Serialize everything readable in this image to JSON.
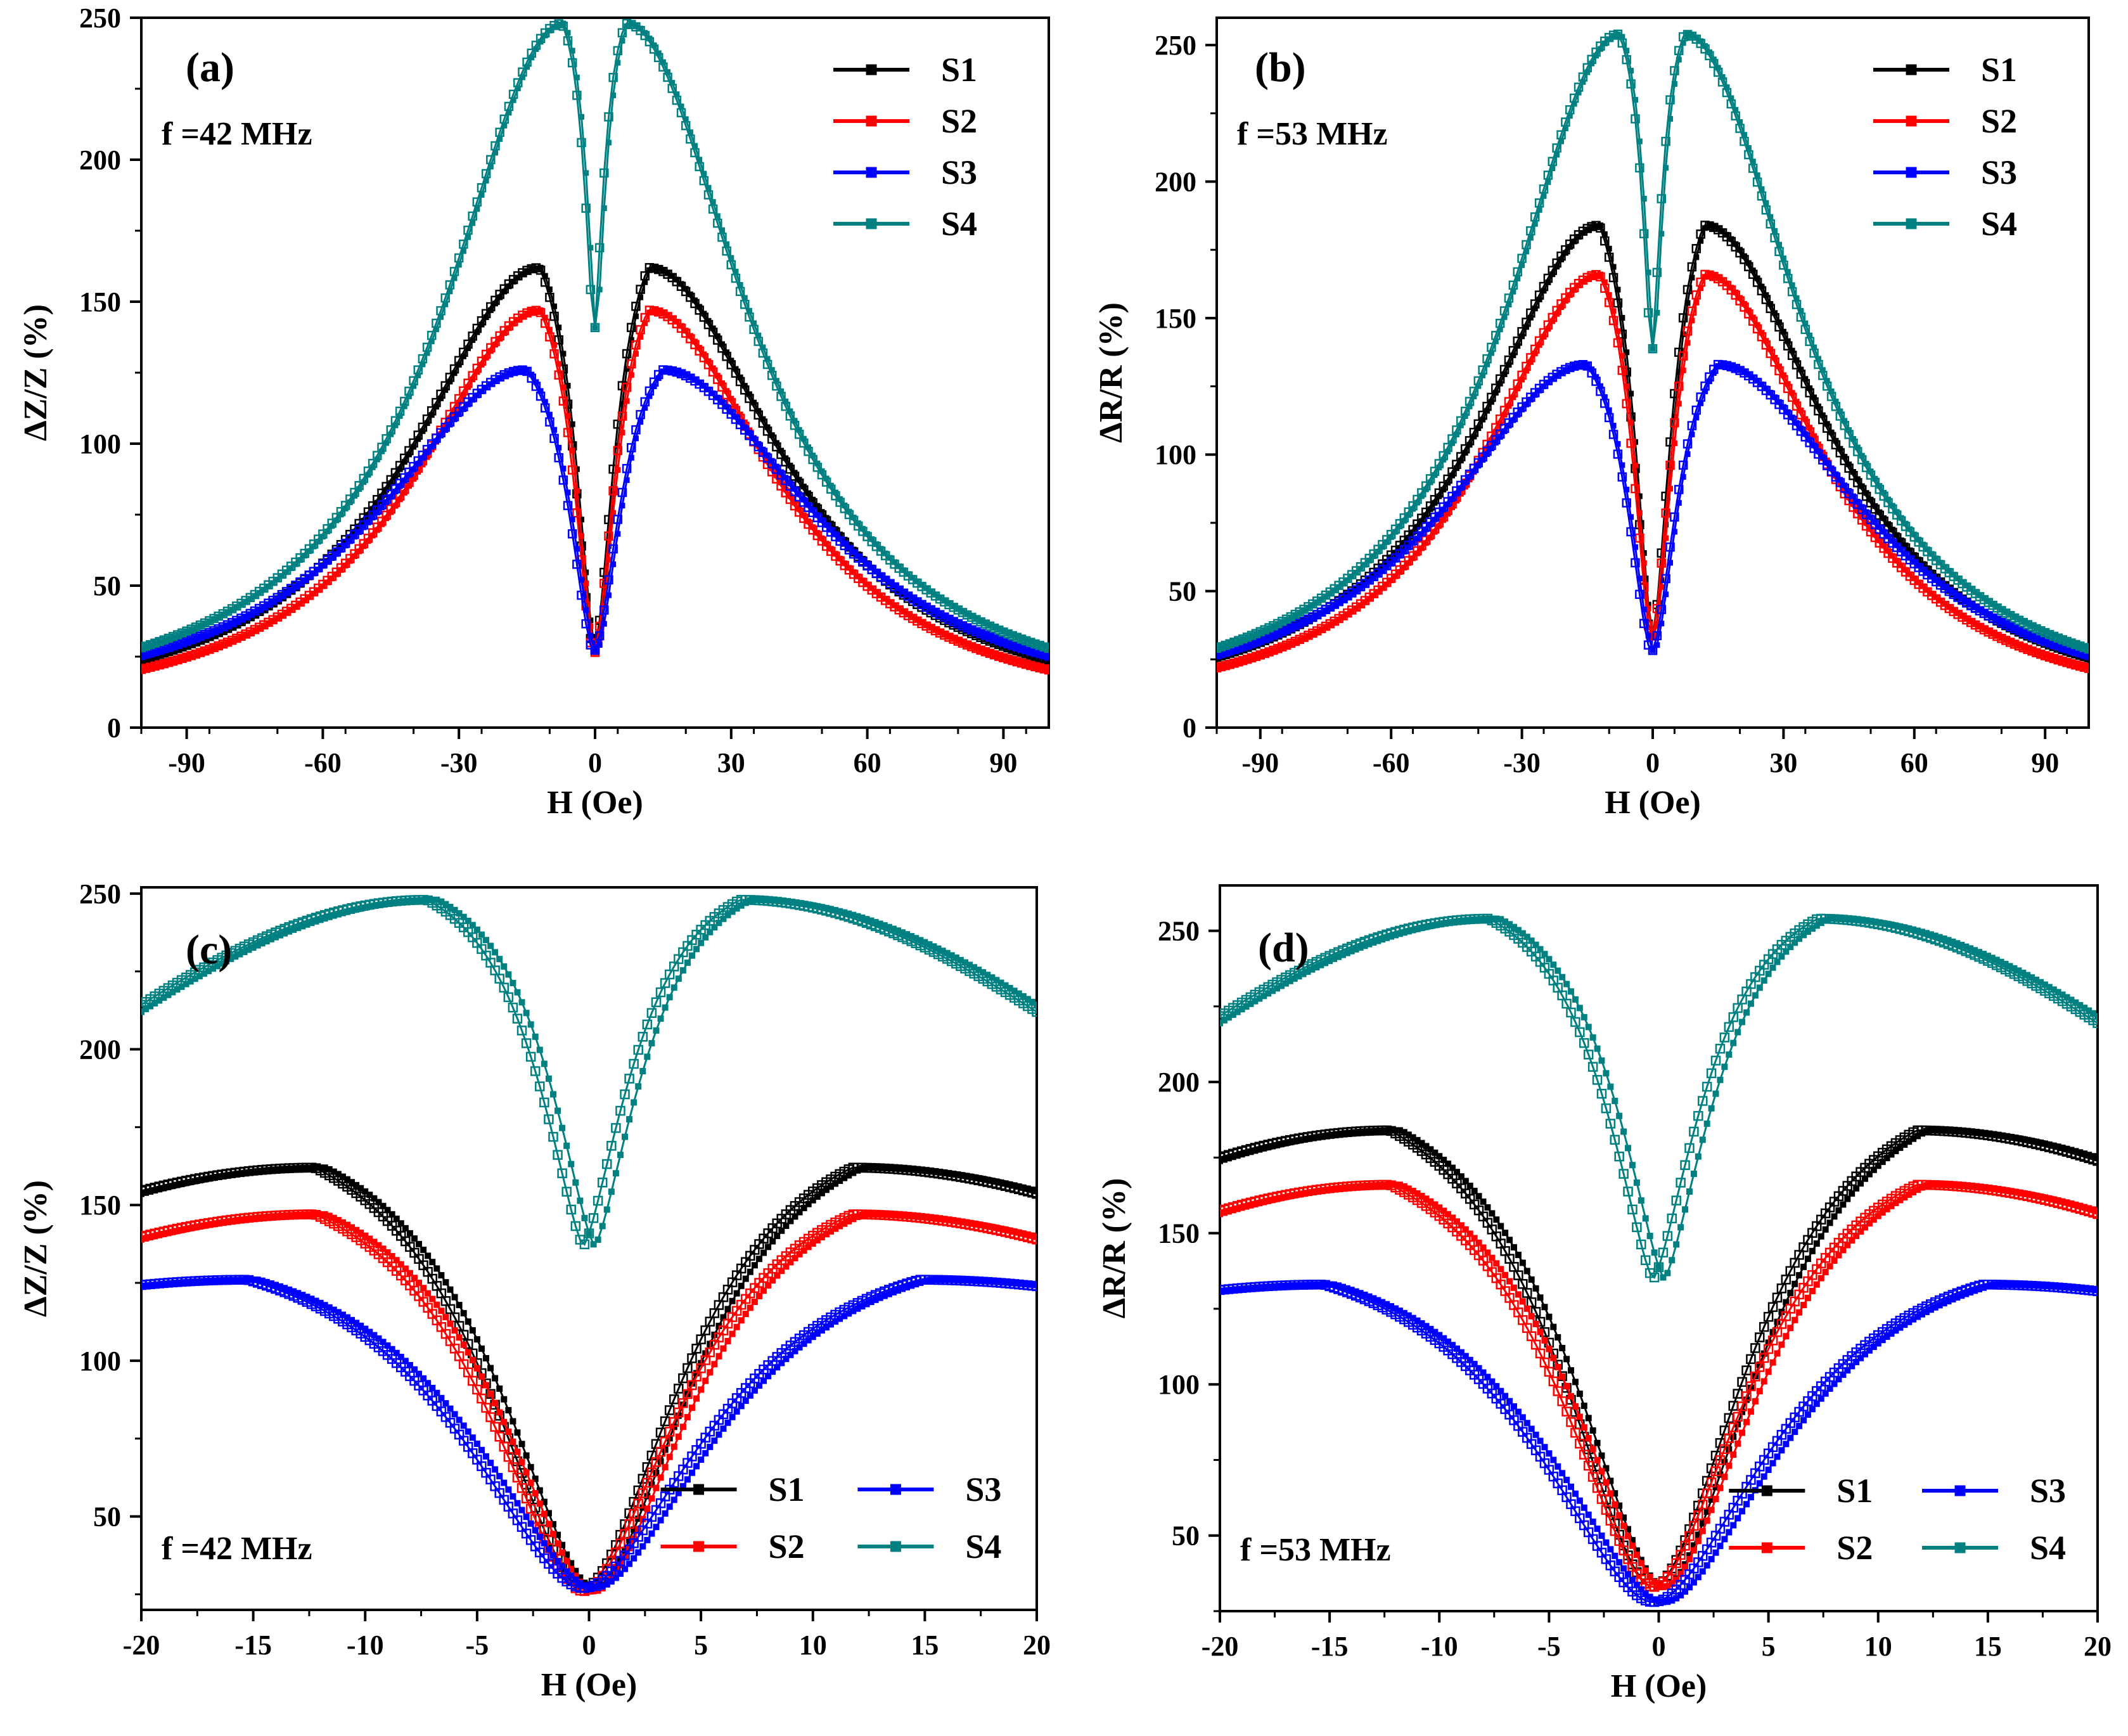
{
  "chart_data": [
    {
      "id": "a",
      "type": "scatter",
      "panel_label": "(a)",
      "annotation": "f =42 MHz",
      "xlabel": "H (Oe)",
      "ylabel": "ΔZ/Z (%)",
      "xlim": [
        -100,
        100
      ],
      "ylim": [
        0,
        250
      ],
      "xticks": [
        "-90",
        "-60",
        "-30",
        "0",
        "30",
        "60",
        "90"
      ],
      "xtick_values": [
        -90,
        -60,
        -30,
        0,
        30,
        60,
        90
      ],
      "yticks": [
        "0",
        "50",
        "100",
        "150",
        "200",
        "250"
      ],
      "ytick_values": [
        0,
        50,
        100,
        150,
        200,
        250
      ],
      "legend": {
        "placement": "top-right",
        "columns": 1,
        "entries": [
          "S1",
          "S2",
          "S3",
          "S4"
        ]
      },
      "series": [
        {
          "name": "S1",
          "color": "#000000",
          "peak": 162,
          "peak_h": 12,
          "min": 27,
          "tail": 2,
          "width": 35,
          "depth": 2
        },
        {
          "name": "S2",
          "color": "#ff0000",
          "peak": 147,
          "peak_h": 12,
          "min": 26,
          "tail": 1.5,
          "width": 34,
          "depth": 2
        },
        {
          "name": "S3",
          "color": "#0000ff",
          "peak": 126,
          "peak_h": 15,
          "min": 27,
          "tail": 3,
          "width": 40,
          "depth": 2
        },
        {
          "name": "S4",
          "color": "#008080",
          "peak": 248,
          "peak_h": 7,
          "min": 137,
          "tail": 2,
          "width": 32,
          "depth": 1.5
        }
      ]
    },
    {
      "id": "b",
      "type": "scatter",
      "panel_label": "(b)",
      "annotation": "f =53 MHz",
      "xlabel": "H (Oe)",
      "ylabel": "ΔR/R (%)",
      "xlim": [
        -100,
        100
      ],
      "ylim": [
        0,
        260
      ],
      "xticks": [
        "-90",
        "-60",
        "-30",
        "0",
        "30",
        "60",
        "90"
      ],
      "xtick_values": [
        -90,
        -60,
        -30,
        0,
        30,
        60,
        90
      ],
      "yticks": [
        "0",
        "50",
        "100",
        "150",
        "200",
        "250"
      ],
      "ytick_values": [
        0,
        50,
        100,
        150,
        200,
        250
      ],
      "legend": {
        "placement": "top-right",
        "columns": 1,
        "entries": [
          "S1",
          "S2",
          "S3",
          "S4"
        ]
      },
      "series": [
        {
          "name": "S1",
          "color": "#000000",
          "peak": 184,
          "peak_h": 12,
          "min": 33,
          "tail": 2,
          "width": 34,
          "depth": 2
        },
        {
          "name": "S2",
          "color": "#ff0000",
          "peak": 166,
          "peak_h": 12,
          "min": 33,
          "tail": 1.5,
          "width": 33,
          "depth": 2
        },
        {
          "name": "S3",
          "color": "#0000ff",
          "peak": 133,
          "peak_h": 15,
          "min": 28,
          "tail": 3,
          "width": 40,
          "depth": 2
        },
        {
          "name": "S4",
          "color": "#008080",
          "peak": 254,
          "peak_h": 7.5,
          "min": 135,
          "tail": 2,
          "width": 32,
          "depth": 1.5
        }
      ]
    },
    {
      "id": "c",
      "type": "scatter",
      "panel_label": "(c)",
      "annotation": "f =42 MHz",
      "xlabel": "H (Oe)",
      "ylabel": "ΔZ/Z (%)",
      "xlim": [
        -20,
        20
      ],
      "ylim": [
        20,
        252
      ],
      "xticks": [
        "-20",
        "-15",
        "-10",
        "-5",
        "0",
        "5",
        "10",
        "15",
        "20"
      ],
      "xtick_values": [
        -20,
        -15,
        -10,
        -5,
        0,
        5,
        10,
        15,
        20
      ],
      "yticks": [
        "50",
        "100",
        "150",
        "200",
        "250"
      ],
      "ytick_values": [
        50,
        100,
        150,
        200,
        250
      ],
      "legend": {
        "placement": "bottom-right",
        "columns": 2,
        "entries": [
          "S1",
          "S3",
          "S2",
          "S4"
        ]
      },
      "series": [
        {
          "name": "S1",
          "color": "#000000",
          "peak": 162,
          "peak_h": 12,
          "min": 27,
          "tail": 2,
          "width": 35,
          "depth": 2
        },
        {
          "name": "S2",
          "color": "#ff0000",
          "peak": 147,
          "peak_h": 12,
          "min": 26,
          "tail": 1.5,
          "width": 34,
          "depth": 2
        },
        {
          "name": "S3",
          "color": "#0000ff",
          "peak": 126,
          "peak_h": 15,
          "min": 27,
          "tail": 3,
          "width": 40,
          "depth": 2
        },
        {
          "name": "S4",
          "color": "#008080",
          "peak": 248,
          "peak_h": 7,
          "min": 137,
          "tail": 2,
          "width": 32,
          "depth": 1.5
        }
      ]
    },
    {
      "id": "d",
      "type": "scatter",
      "panel_label": "(d)",
      "annotation": "f =53 MHz",
      "xlabel": "H (Oe)",
      "ylabel": "ΔR/R (%)",
      "xlim": [
        -20,
        20
      ],
      "ylim": [
        25,
        265
      ],
      "xticks": [
        "-20",
        "-15",
        "-10",
        "-5",
        "0",
        "5",
        "10",
        "15",
        "20"
      ],
      "xtick_values": [
        -20,
        -15,
        -10,
        -5,
        0,
        5,
        10,
        15,
        20
      ],
      "yticks": [
        "50",
        "100",
        "150",
        "200",
        "250"
      ],
      "ytick_values": [
        50,
        100,
        150,
        200,
        250
      ],
      "legend": {
        "placement": "bottom-right",
        "columns": 2,
        "entries": [
          "S1",
          "S3",
          "S2",
          "S4"
        ]
      },
      "series": [
        {
          "name": "S1",
          "color": "#000000",
          "peak": 184,
          "peak_h": 12,
          "min": 33,
          "tail": 2,
          "width": 34,
          "depth": 2
        },
        {
          "name": "S2",
          "color": "#ff0000",
          "peak": 166,
          "peak_h": 12,
          "min": 33,
          "tail": 1.5,
          "width": 33,
          "depth": 2
        },
        {
          "name": "S3",
          "color": "#0000ff",
          "peak": 133,
          "peak_h": 15,
          "min": 28,
          "tail": 3,
          "width": 40,
          "depth": 2
        },
        {
          "name": "S4",
          "color": "#008080",
          "peak": 254,
          "peak_h": 7.5,
          "min": 135,
          "tail": 2,
          "width": 32,
          "depth": 1.5
        }
      ]
    }
  ]
}
